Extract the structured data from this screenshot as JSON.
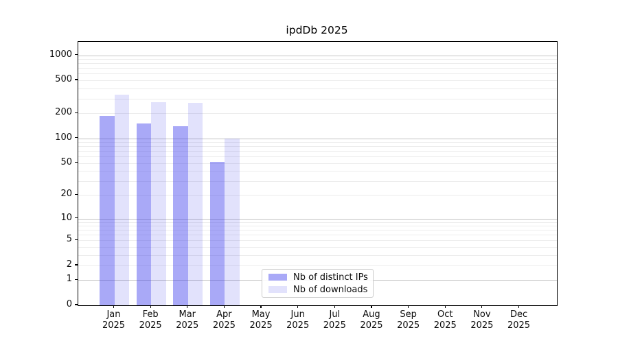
{
  "chart_data": {
    "type": "bar",
    "title": "ipdDb 2025",
    "x_year": "2025",
    "categories": [
      "Jan",
      "Feb",
      "Mar",
      "Apr",
      "May",
      "Jun",
      "Jul",
      "Aug",
      "Sep",
      "Oct",
      "Nov",
      "Dec"
    ],
    "series": [
      {
        "name": "Nb of distinct IPs",
        "color": "rgba(50,50,235,0.42)",
        "values": [
          185,
          150,
          140,
          52,
          0,
          0,
          0,
          0,
          0,
          0,
          0,
          0
        ]
      },
      {
        "name": "Nb of downloads",
        "color": "rgba(50,50,235,0.14)",
        "values": [
          335,
          273,
          270,
          100,
          0,
          0,
          0,
          0,
          0,
          0,
          0,
          0
        ]
      }
    ],
    "y_axis": {
      "scale": "log1p",
      "min": 0,
      "max": 1450,
      "ticks": [
        0,
        1,
        2,
        5,
        10,
        20,
        50,
        100,
        200,
        500,
        1000
      ],
      "major_gridlines": [
        1,
        10,
        100,
        1000
      ]
    },
    "grid": true,
    "legend": {
      "position": "lower center"
    }
  }
}
